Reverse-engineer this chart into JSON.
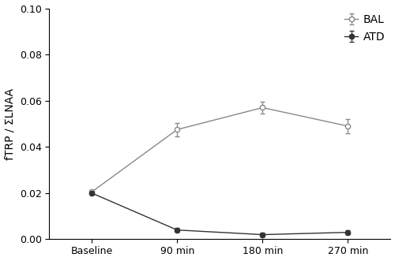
{
  "x_labels": [
    "Baseline",
    "90 min",
    "180 min",
    "270 min"
  ],
  "x_positions": [
    0,
    1,
    2,
    3
  ],
  "BAL_means": [
    0.0205,
    0.0475,
    0.057,
    0.049
  ],
  "BAL_errors": [
    0.0008,
    0.003,
    0.0025,
    0.003
  ],
  "ATD_means": [
    0.02,
    0.004,
    0.002,
    0.003
  ],
  "ATD_errors": [
    0.0008,
    0.0008,
    0.0008,
    0.0008
  ],
  "BAL_color": "#888888",
  "ATD_color": "#333333",
  "ylabel": "fTRP / ΣLNAA",
  "ylim": [
    0.0,
    0.1
  ],
  "yticks": [
    0.0,
    0.02,
    0.04,
    0.06,
    0.08,
    0.1
  ],
  "legend_labels": [
    "BAL",
    "ATD"
  ],
  "BAL_marker": "o",
  "ATD_marker": "o",
  "linewidth": 1.0,
  "markersize": 4.5,
  "capsize": 2.5,
  "background_color": "#ffffff",
  "tick_fontsize": 9,
  "label_fontsize": 10,
  "legend_fontsize": 10
}
